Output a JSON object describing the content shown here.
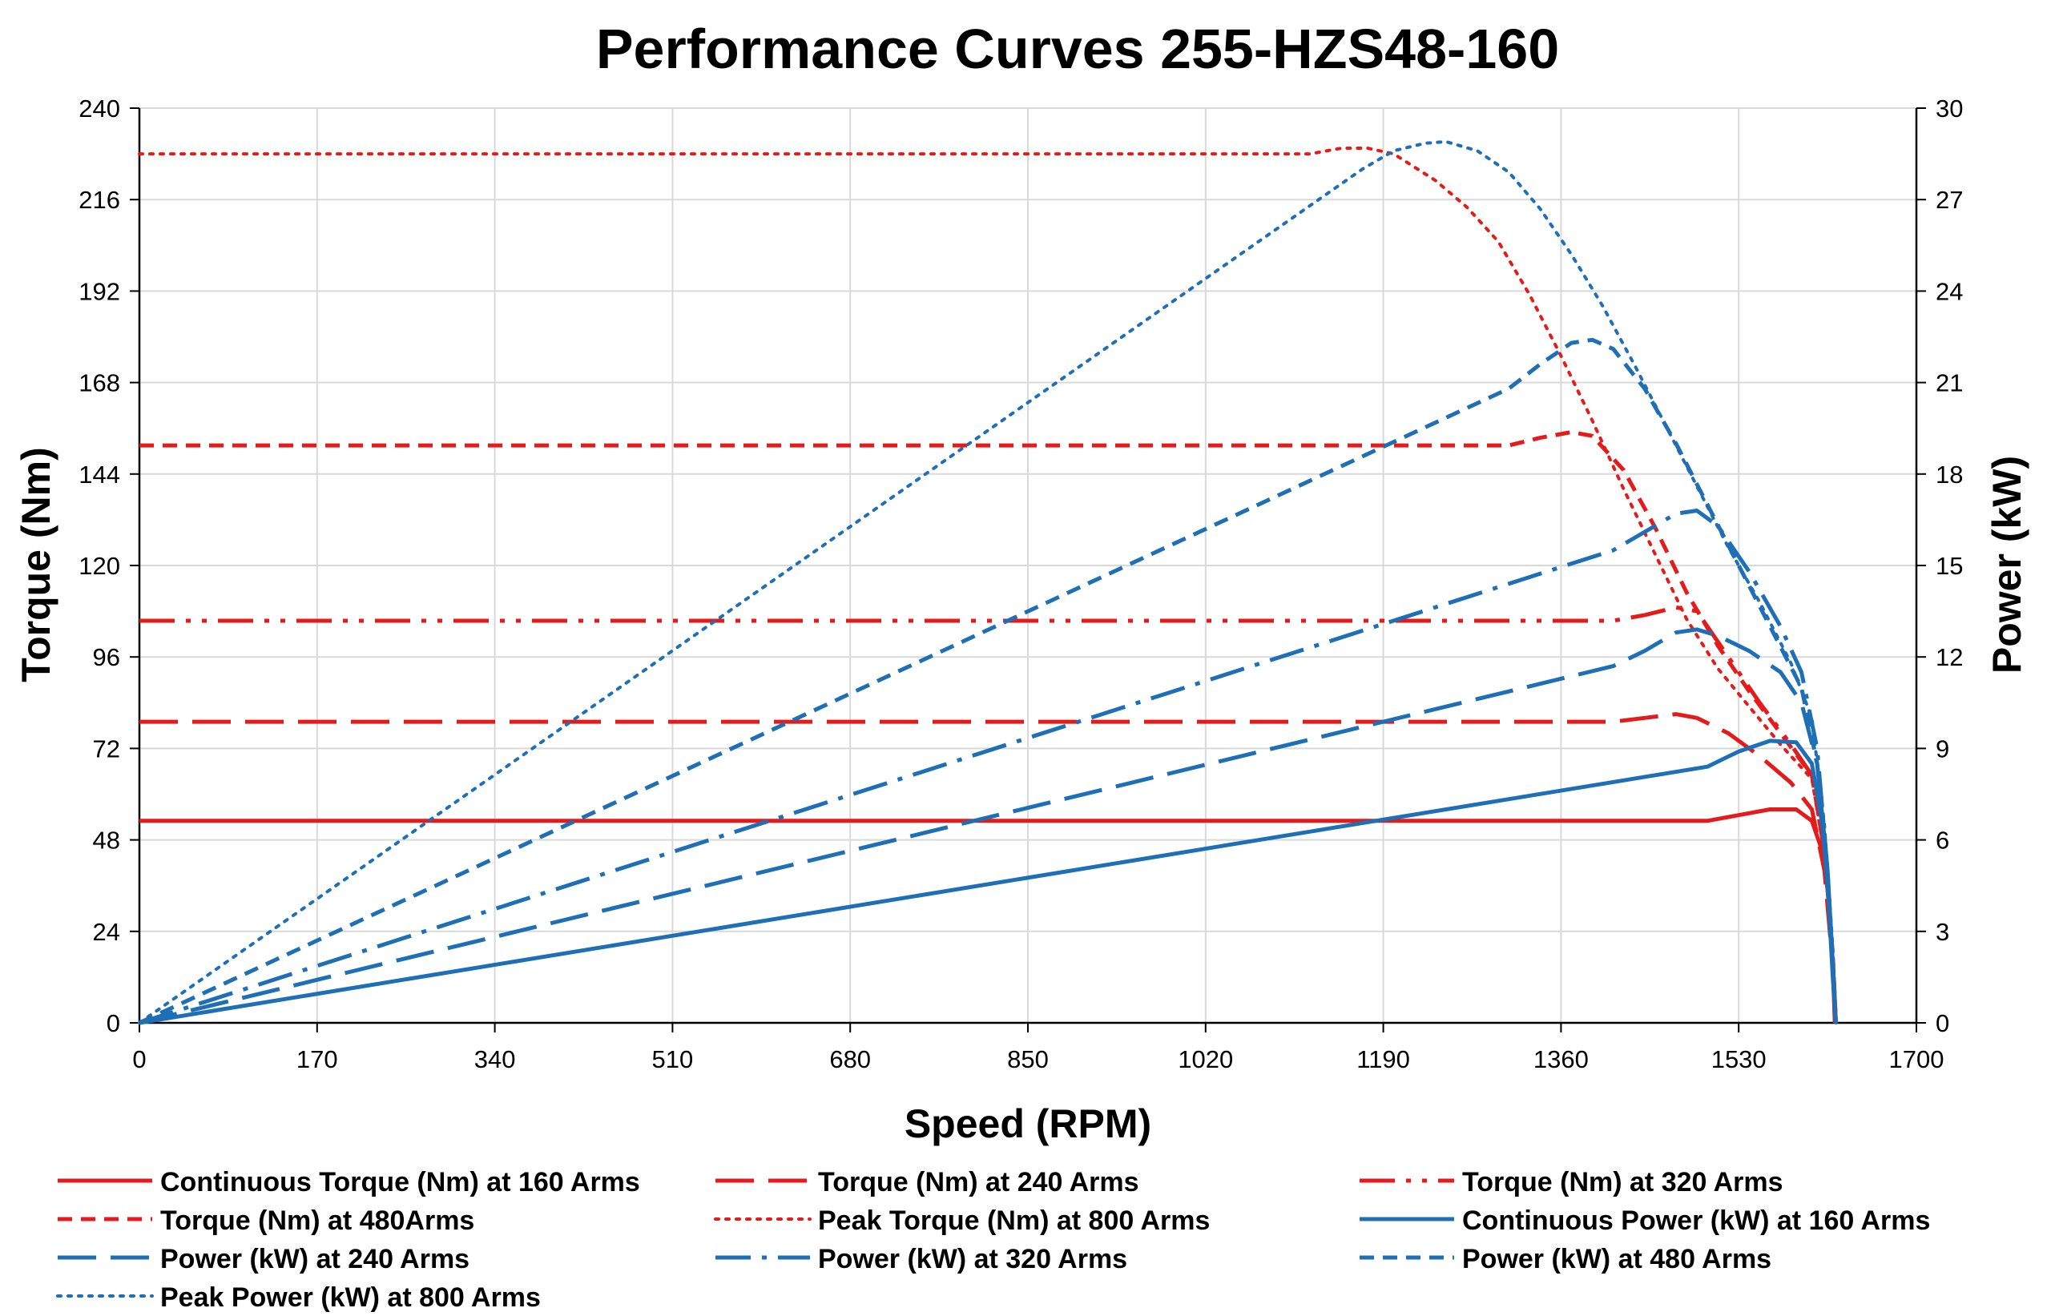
{
  "chart_data": {
    "type": "line",
    "title": "Performance Curves 255-HZS48-160",
    "xlabel": "Speed (RPM)",
    "ylabel_left": "Torque (Nm)",
    "ylabel_right": "Power (kW)",
    "xlim": [
      0,
      1700
    ],
    "ylim_left": [
      0,
      240
    ],
    "ylim_right": [
      0,
      30
    ],
    "x_ticks": [
      "0",
      "170",
      "340",
      "510",
      "680",
      "850",
      "1020",
      "1190",
      "1360",
      "1530",
      "1700"
    ],
    "y_left_ticks": [
      "0",
      "24",
      "48",
      "72",
      "96",
      "120",
      "144",
      "168",
      "192",
      "216",
      "240"
    ],
    "y_right_ticks": [
      "0",
      "3",
      "6",
      "9",
      "12",
      "15",
      "18",
      "21",
      "24",
      "27",
      "30"
    ],
    "grid": true,
    "legend_position": "bottom",
    "colors": {
      "torque": "#e51b1b",
      "power": "#1f6fb6"
    },
    "series": [
      {
        "name": "Continuous Torque (Nm) at 160 Arms",
        "axis": "left",
        "color": "#e51b1b",
        "dash": "solid",
        "points": [
          [
            0,
            53
          ],
          [
            1500,
            53
          ],
          [
            1530,
            54.5
          ],
          [
            1560,
            56
          ],
          [
            1585,
            56
          ],
          [
            1600,
            53
          ],
          [
            1610,
            45
          ],
          [
            1616,
            33
          ],
          [
            1620,
            15
          ],
          [
            1622,
            0
          ]
        ]
      },
      {
        "name": "Torque (Nm) at 240 Arms",
        "axis": "left",
        "color": "#e51b1b",
        "dash": "longdash",
        "points": [
          [
            0,
            79
          ],
          [
            1410,
            79
          ],
          [
            1440,
            80
          ],
          [
            1470,
            81
          ],
          [
            1490,
            80
          ],
          [
            1520,
            76
          ],
          [
            1550,
            70
          ],
          [
            1580,
            63
          ],
          [
            1600,
            56
          ],
          [
            1612,
            40
          ],
          [
            1620,
            15
          ],
          [
            1623,
            0
          ]
        ]
      },
      {
        "name": "Torque (Nm) at 320 Arms",
        "axis": "left",
        "color": "#e51b1b",
        "dash": "dashdotdot",
        "points": [
          [
            0,
            105.5
          ],
          [
            1410,
            105.5
          ],
          [
            1440,
            107
          ],
          [
            1470,
            109
          ],
          [
            1490,
            108
          ],
          [
            1520,
            96
          ],
          [
            1550,
            84
          ],
          [
            1580,
            73
          ],
          [
            1600,
            65
          ],
          [
            1612,
            45
          ],
          [
            1620,
            18
          ],
          [
            1623,
            0
          ]
        ]
      },
      {
        "name": "Torque (Nm) at 480Arms",
        "axis": "left",
        "color": "#e51b1b",
        "dash": "shortdash",
        "points": [
          [
            0,
            151.5
          ],
          [
            1310,
            151.5
          ],
          [
            1340,
            153.5
          ],
          [
            1370,
            155
          ],
          [
            1390,
            154
          ],
          [
            1420,
            145
          ],
          [
            1450,
            130
          ],
          [
            1480,
            113
          ],
          [
            1510,
            99
          ],
          [
            1540,
            87
          ],
          [
            1570,
            76
          ],
          [
            1600,
            65
          ],
          [
            1612,
            45
          ],
          [
            1620,
            18
          ],
          [
            1623,
            0
          ]
        ]
      },
      {
        "name": "Peak Torque (Nm) at 800  Arms",
        "axis": "left",
        "color": "#e51b1b",
        "dash": "dotted",
        "points": [
          [
            0,
            228
          ],
          [
            1120,
            228
          ],
          [
            1150,
            229.5
          ],
          [
            1175,
            229.5
          ],
          [
            1200,
            228
          ],
          [
            1240,
            221
          ],
          [
            1270,
            214
          ],
          [
            1300,
            205
          ],
          [
            1330,
            191
          ],
          [
            1360,
            175
          ],
          [
            1390,
            158
          ],
          [
            1420,
            140
          ],
          [
            1450,
            123
          ],
          [
            1480,
            106
          ],
          [
            1510,
            93
          ],
          [
            1540,
            83
          ],
          [
            1570,
            73
          ],
          [
            1600,
            64
          ],
          [
            1612,
            45
          ],
          [
            1620,
            18
          ],
          [
            1623,
            0
          ]
        ]
      },
      {
        "name": "Continuous Power (kW) at 160 Arms",
        "axis": "right",
        "color": "#1f6fb6",
        "dash": "solid",
        "points": [
          [
            0,
            0
          ],
          [
            1500,
            8.4
          ],
          [
            1530,
            8.9
          ],
          [
            1560,
            9.25
          ],
          [
            1585,
            9.2
          ],
          [
            1600,
            8.5
          ],
          [
            1610,
            6.5
          ],
          [
            1616,
            4
          ],
          [
            1620,
            1.5
          ],
          [
            1623,
            0
          ]
        ]
      },
      {
        "name": "Power (kW) at 240 Arms",
        "axis": "right",
        "color": "#1f6fb6",
        "dash": "longdash",
        "points": [
          [
            0,
            0
          ],
          [
            1410,
            11.7
          ],
          [
            1440,
            12.2
          ],
          [
            1470,
            12.8
          ],
          [
            1490,
            12.9
          ],
          [
            1510,
            12.7
          ],
          [
            1540,
            12.2
          ],
          [
            1570,
            11.5
          ],
          [
            1590,
            10.5
          ],
          [
            1605,
            8.5
          ],
          [
            1615,
            5
          ],
          [
            1620,
            2
          ],
          [
            1623,
            0
          ]
        ]
      },
      {
        "name": "Power (kW) at 320 Arms",
        "axis": "right",
        "color": "#1f6fb6",
        "dash": "dashdot",
        "points": [
          [
            0,
            0
          ],
          [
            1410,
            15.5
          ],
          [
            1440,
            16.1
          ],
          [
            1470,
            16.7
          ],
          [
            1490,
            16.8
          ],
          [
            1510,
            16.3
          ],
          [
            1540,
            14.8
          ],
          [
            1570,
            13
          ],
          [
            1590,
            11.5
          ],
          [
            1605,
            9
          ],
          [
            1615,
            5
          ],
          [
            1620,
            2
          ],
          [
            1623,
            0
          ]
        ]
      },
      {
        "name": "Power (kW) at 480 Arms",
        "axis": "right",
        "color": "#1f6fb6",
        "dash": "shortdash",
        "points": [
          [
            0,
            0
          ],
          [
            1310,
            20.8
          ],
          [
            1340,
            21.6
          ],
          [
            1370,
            22.3
          ],
          [
            1390,
            22.4
          ],
          [
            1410,
            22.1
          ],
          [
            1440,
            20.8
          ],
          [
            1470,
            19
          ],
          [
            1500,
            17
          ],
          [
            1530,
            15
          ],
          [
            1560,
            13
          ],
          [
            1590,
            11
          ],
          [
            1605,
            8.5
          ],
          [
            1615,
            5
          ],
          [
            1620,
            2
          ],
          [
            1623,
            0
          ]
        ]
      },
      {
        "name": "Peak Power (kW) at 800 Arms",
        "axis": "right",
        "color": "#1f6fb6",
        "dash": "dotted",
        "points": [
          [
            0,
            0
          ],
          [
            1170,
            28
          ],
          [
            1200,
            28.6
          ],
          [
            1230,
            28.85
          ],
          [
            1250,
            28.9
          ],
          [
            1280,
            28.6
          ],
          [
            1310,
            27.9
          ],
          [
            1340,
            26.7
          ],
          [
            1370,
            25.2
          ],
          [
            1400,
            23.5
          ],
          [
            1430,
            21.6
          ],
          [
            1460,
            19.6
          ],
          [
            1490,
            17.6
          ],
          [
            1520,
            15.6
          ],
          [
            1550,
            13.8
          ],
          [
            1580,
            11.8
          ],
          [
            1600,
            10
          ],
          [
            1612,
            6.5
          ],
          [
            1620,
            2.5
          ],
          [
            1623,
            0
          ]
        ]
      }
    ]
  }
}
